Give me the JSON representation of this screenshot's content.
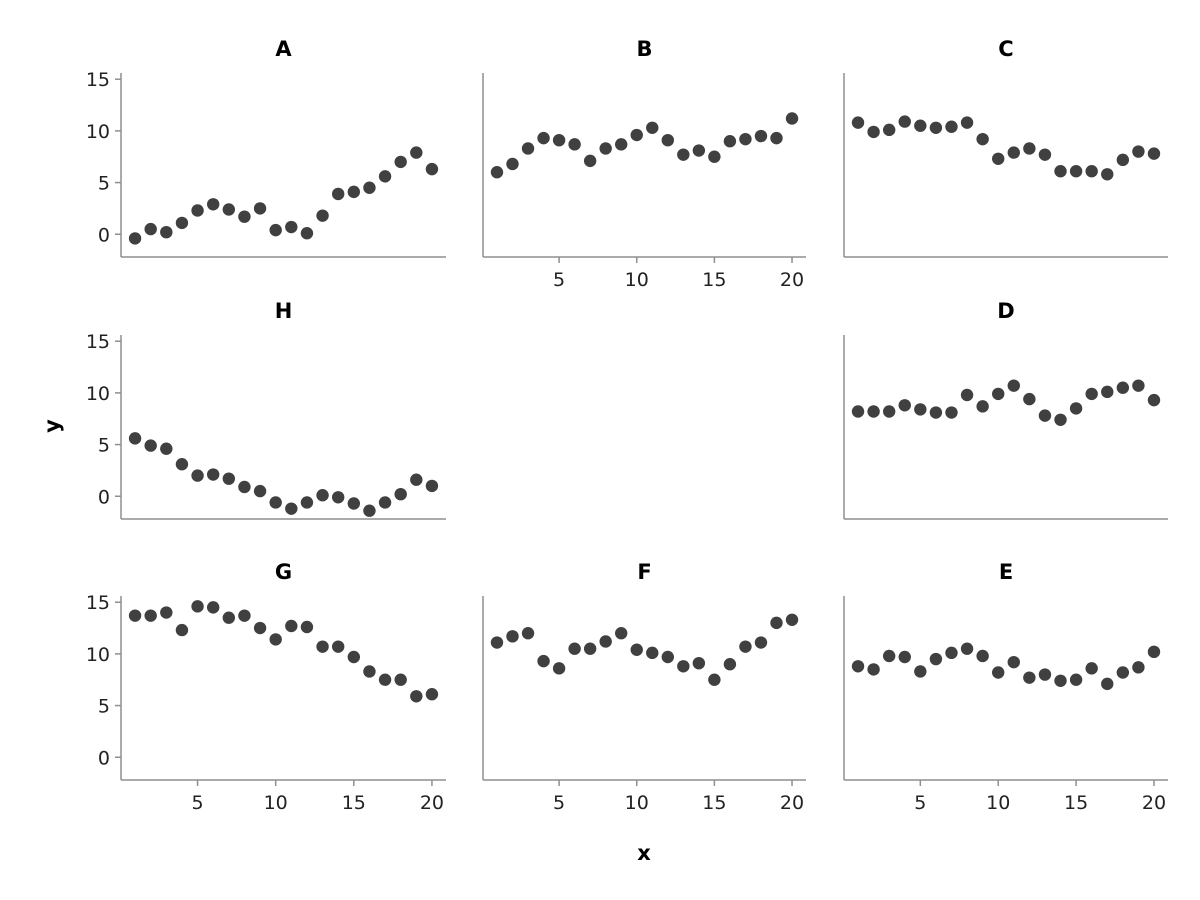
{
  "chart_data": {
    "type": "scatter",
    "xlabel": "x",
    "ylabel": "y",
    "xlim": [
      0.1,
      20.9
    ],
    "ylim": [
      -2.2,
      15.6
    ],
    "xticks": [
      5,
      10,
      15,
      20
    ],
    "yticks": [
      0,
      5,
      10,
      15
    ],
    "grid": false,
    "point_color": "#404040",
    "axis_color": "#8f8f8f",
    "panels": [
      {
        "title": "A",
        "show_xticks": false,
        "show_yticks": true,
        "x": [
          1,
          2,
          3,
          4,
          5,
          6,
          7,
          8,
          9,
          10,
          11,
          12,
          13,
          14,
          15,
          16,
          17,
          18,
          19,
          20
        ],
        "y": [
          -0.4,
          0.5,
          0.2,
          1.1,
          2.3,
          2.9,
          2.4,
          1.7,
          2.5,
          0.4,
          0.7,
          0.1,
          1.8,
          3.9,
          4.1,
          4.5,
          5.6,
          7.0,
          7.9,
          6.3
        ]
      },
      {
        "title": "B",
        "show_xticks": true,
        "show_yticks": false,
        "x": [
          1,
          2,
          3,
          4,
          5,
          6,
          7,
          8,
          9,
          10,
          11,
          12,
          13,
          14,
          15,
          16,
          17,
          18,
          19,
          20
        ],
        "y": [
          6.0,
          6.8,
          8.3,
          9.3,
          9.1,
          8.7,
          7.1,
          8.3,
          8.7,
          9.6,
          10.3,
          9.1,
          7.7,
          8.1,
          7.5,
          9.0,
          9.2,
          9.5,
          9.3,
          11.2
        ]
      },
      {
        "title": "C",
        "show_xticks": false,
        "show_yticks": false,
        "x": [
          1,
          2,
          3,
          4,
          5,
          6,
          7,
          8,
          9,
          10,
          11,
          12,
          13,
          14,
          15,
          16,
          17,
          18,
          19,
          20
        ],
        "y": [
          10.8,
          9.9,
          10.1,
          10.9,
          10.5,
          10.3,
          10.4,
          10.8,
          9.2,
          7.3,
          7.9,
          8.3,
          7.7,
          6.1,
          6.1,
          6.1,
          5.8,
          7.2,
          8.0,
          7.8
        ]
      },
      {
        "title": "H",
        "show_xticks": false,
        "show_yticks": true,
        "x": [
          1,
          2,
          3,
          4,
          5,
          6,
          7,
          8,
          9,
          10,
          11,
          12,
          13,
          14,
          15,
          16,
          17,
          18,
          19,
          20
        ],
        "y": [
          5.6,
          4.9,
          4.6,
          3.1,
          2.0,
          2.1,
          1.7,
          0.9,
          0.5,
          -0.6,
          -1.2,
          -0.6,
          0.1,
          -0.1,
          -0.7,
          -1.4,
          -0.6,
          0.2,
          1.6,
          1.0
        ]
      },
      {
        "title": "D",
        "show_xticks": false,
        "show_yticks": false,
        "x": [
          1,
          2,
          3,
          4,
          5,
          6,
          7,
          8,
          9,
          10,
          11,
          12,
          13,
          14,
          15,
          16,
          17,
          18,
          19,
          20
        ],
        "y": [
          8.2,
          8.2,
          8.2,
          8.8,
          8.4,
          8.1,
          8.1,
          9.8,
          8.7,
          9.9,
          10.7,
          9.4,
          7.8,
          7.4,
          8.5,
          9.9,
          10.1,
          10.5,
          10.7,
          9.3
        ]
      },
      {
        "title": "G",
        "show_xticks": true,
        "show_yticks": true,
        "x": [
          1,
          2,
          3,
          4,
          5,
          6,
          7,
          8,
          9,
          10,
          11,
          12,
          13,
          14,
          15,
          16,
          17,
          18,
          19,
          20
        ],
        "y": [
          13.7,
          13.7,
          14.0,
          12.3,
          14.6,
          14.5,
          13.5,
          13.7,
          12.5,
          11.4,
          12.7,
          12.6,
          10.7,
          10.7,
          9.7,
          8.3,
          7.5,
          7.5,
          5.9,
          6.1
        ]
      },
      {
        "title": "F",
        "show_xticks": true,
        "show_yticks": false,
        "x": [
          1,
          2,
          3,
          4,
          5,
          6,
          7,
          8,
          9,
          10,
          11,
          12,
          13,
          14,
          15,
          16,
          17,
          18,
          19,
          20
        ],
        "y": [
          11.1,
          11.7,
          12.0,
          9.3,
          8.6,
          10.5,
          10.5,
          11.2,
          12.0,
          10.4,
          10.1,
          9.7,
          8.8,
          9.1,
          7.5,
          9.0,
          10.7,
          11.1,
          13.0,
          13.3
        ]
      },
      {
        "title": "E",
        "show_xticks": true,
        "show_yticks": false,
        "x": [
          1,
          2,
          3,
          4,
          5,
          6,
          7,
          8,
          9,
          10,
          11,
          12,
          13,
          14,
          15,
          16,
          17,
          18,
          19,
          20
        ],
        "y": [
          8.8,
          8.5,
          9.8,
          9.7,
          8.3,
          9.5,
          10.1,
          10.5,
          9.8,
          8.2,
          9.2,
          7.7,
          8.0,
          7.4,
          7.5,
          8.6,
          7.1,
          8.2,
          8.7,
          10.2
        ]
      }
    ]
  }
}
